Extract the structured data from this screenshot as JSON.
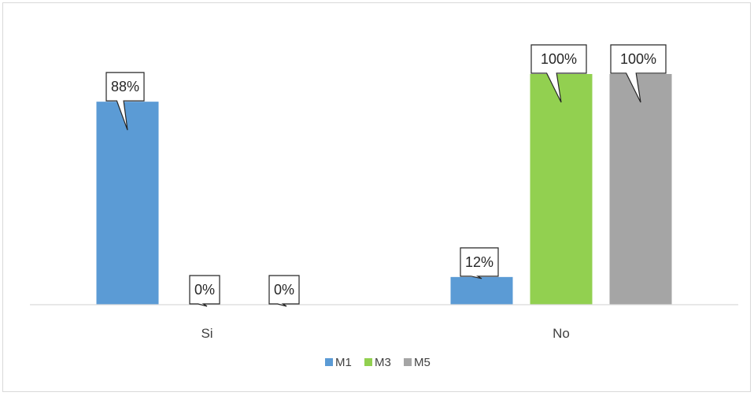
{
  "chart_data": {
    "type": "bar",
    "categories": [
      "Si",
      "No"
    ],
    "series": [
      {
        "name": "M1",
        "values": [
          88,
          12
        ],
        "labels": [
          "88%",
          "12%"
        ],
        "color": "#5b9bd5"
      },
      {
        "name": "M3",
        "values": [
          0,
          100
        ],
        "labels": [
          "0%",
          "100%"
        ],
        "color": "#92d050"
      },
      {
        "name": "M5",
        "values": [
          0,
          100
        ],
        "labels": [
          "0%",
          "100%"
        ],
        "color": "#a5a5a5"
      }
    ],
    "ylim": [
      0,
      100
    ],
    "grid": false,
    "legend": "bottom-center",
    "title": "",
    "xlabel": "",
    "ylabel": ""
  }
}
